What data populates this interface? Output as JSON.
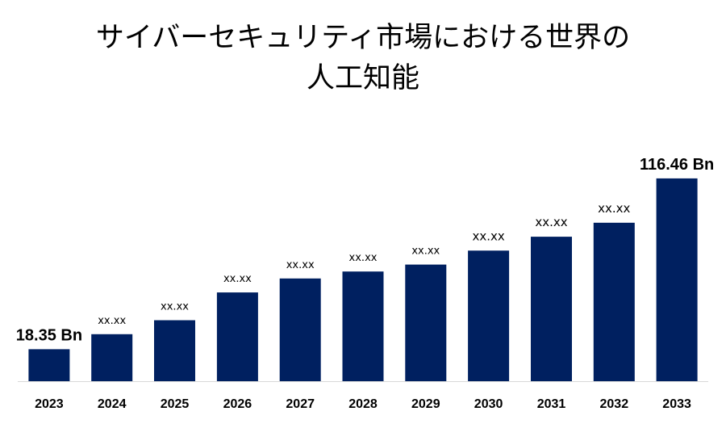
{
  "chart_data": {
    "type": "bar",
    "title_line1": "サイバーセキュリティ市場における世界の",
    "title_line2": "人工知能",
    "categories": [
      "2023",
      "2024",
      "2025",
      "2026",
      "2027",
      "2028",
      "2029",
      "2030",
      "2031",
      "2032",
      "2033"
    ],
    "values": [
      18.35,
      27,
      35,
      51,
      59,
      63,
      67,
      75,
      83,
      91,
      116.46
    ],
    "data_labels": [
      "18.35 Bn",
      "xx.xx",
      "xx.xx",
      "xx.xx",
      "xx.xx",
      "xx.xx",
      "xx.xx",
      "xx.xx",
      "xx.xx",
      "xx.xx",
      "116.46 Bn"
    ],
    "ylim": [
      0,
      122
    ],
    "bar_color": "#002060",
    "grid": false,
    "legend": "none"
  }
}
